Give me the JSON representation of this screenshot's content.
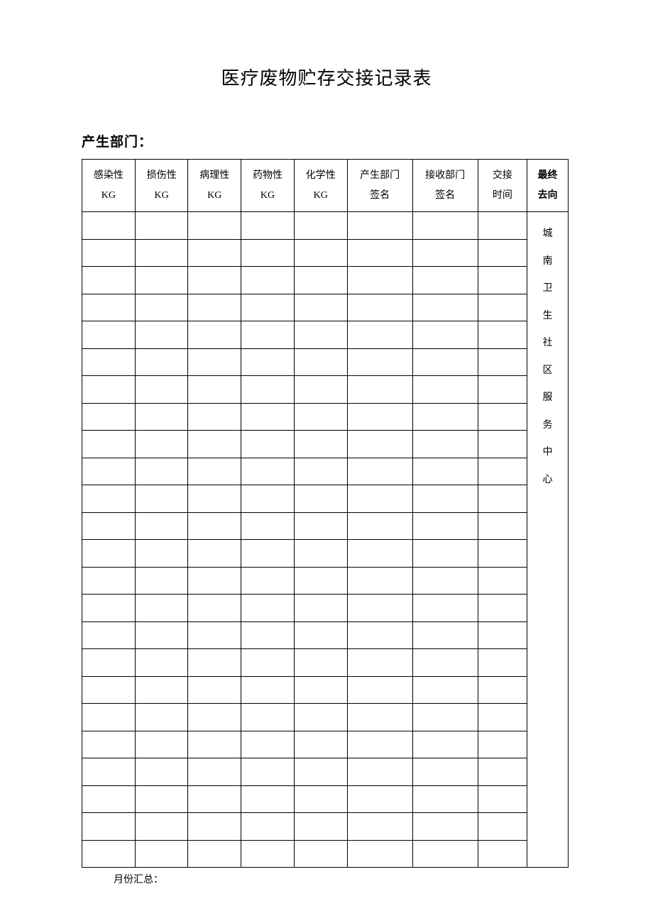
{
  "title": "医疗废物贮存交接记录表",
  "department_label": "产生部门：",
  "footer_label": "月份汇总：",
  "table": {
    "columns": [
      {
        "line1": "感染性",
        "line2": "KG",
        "width_class": "col-kg"
      },
      {
        "line1": "损伤性",
        "line2": "KG",
        "width_class": "col-kg"
      },
      {
        "line1": "病理性",
        "line2": "KG",
        "width_class": "col-kg"
      },
      {
        "line1": "药物性",
        "line2": "KG",
        "width_class": "col-kg"
      },
      {
        "line1": "化学性",
        "line2": "KG",
        "width_class": "col-kg"
      },
      {
        "line1": "产生部门",
        "line2": "签名",
        "width_class": "col-dept"
      },
      {
        "line1": "接收部门",
        "line2": "签名",
        "width_class": "col-dept"
      },
      {
        "line1": "交接",
        "line2": "时间",
        "width_class": "col-time"
      }
    ],
    "destination_header": {
      "line1": "最终",
      "line2": "去向"
    },
    "destination_chars": [
      "城",
      "南",
      "卫",
      "生",
      "社",
      "区",
      "服",
      "务",
      "中",
      "心"
    ],
    "num_data_rows": 24,
    "border_color": "#000000",
    "background_color": "#ffffff",
    "text_color": "#000000",
    "header_fontsize": 14,
    "title_fontsize": 26
  }
}
